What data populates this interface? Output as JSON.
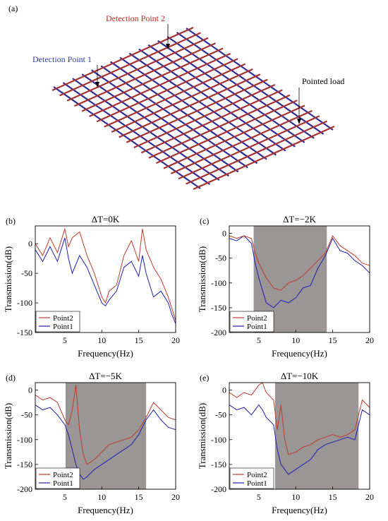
{
  "figure": {
    "top_label": "(a)",
    "annotations": {
      "detection_point_2": "Detection Point 2",
      "detection_point_1": "Detection Point 1",
      "pointed_load": "Pointed load"
    },
    "colors": {
      "point2": "#c0392b",
      "point1": "#1f1fb4",
      "band": "#9a9696",
      "grid_red": "#a83232",
      "grid_blue": "#2c2c9a",
      "annot_red": "#cc2222",
      "annot_blue": "#2e3ea8"
    }
  },
  "chart_data": [
    {
      "type": "line",
      "panel_label": "(b)",
      "title": "ΔT=0K",
      "xlabel": "Frequency(Hz)",
      "ylabel": "Transmission(dB)",
      "xlim": [
        1,
        20
      ],
      "ylim": [
        -150,
        30
      ],
      "xticks": [
        5,
        10,
        15,
        20
      ],
      "yticks": [
        -150,
        -100,
        -50,
        0
      ],
      "band": null,
      "legend": "bottom-left",
      "series": [
        {
          "name": "Point2",
          "x": [
            1,
            2,
            3,
            4,
            5,
            5.5,
            6,
            7,
            8,
            9,
            10,
            10.5,
            11,
            12,
            13,
            14,
            15,
            15.5,
            16,
            17,
            18,
            19,
            19.5,
            20
          ],
          "y": [
            0,
            -20,
            10,
            -15,
            25,
            -5,
            10,
            20,
            -20,
            -50,
            -90,
            -100,
            -80,
            -70,
            -20,
            5,
            -30,
            25,
            -10,
            -40,
            -60,
            -90,
            -110,
            -130
          ]
        },
        {
          "name": "Point1",
          "x": [
            1,
            2,
            3,
            4,
            5,
            5.5,
            6,
            7,
            8,
            9,
            10,
            10.5,
            11,
            12,
            13,
            14,
            15,
            15.5,
            16,
            17,
            18,
            19,
            19.5,
            20
          ],
          "y": [
            -10,
            -30,
            -5,
            -30,
            10,
            -25,
            -50,
            -20,
            -40,
            -70,
            -100,
            -105,
            -95,
            -80,
            -40,
            -30,
            -55,
            -20,
            -50,
            -90,
            -80,
            -100,
            -120,
            -135
          ]
        }
      ]
    },
    {
      "type": "line",
      "panel_label": "(c)",
      "title": "ΔT=−2K",
      "xlabel": "Frequency(Hz)",
      "ylabel": "Transmission(dB)",
      "xlim": [
        1,
        20
      ],
      "ylim": [
        -200,
        15
      ],
      "xticks": [
        5,
        10,
        15,
        20
      ],
      "yticks": [
        -200,
        -150,
        -100,
        -50,
        0
      ],
      "band": [
        4.3,
        14.2
      ],
      "legend": "bottom-left",
      "series": [
        {
          "name": "Point2",
          "x": [
            1,
            2,
            3,
            4,
            4.5,
            5,
            6,
            7,
            8,
            9,
            10,
            11,
            12,
            13,
            14,
            15,
            16,
            17,
            18,
            19,
            20
          ],
          "y": [
            -5,
            -10,
            -5,
            -10,
            -40,
            -60,
            -90,
            -110,
            -115,
            -100,
            -95,
            -85,
            -70,
            -55,
            -40,
            -5,
            -25,
            -35,
            -45,
            -60,
            -65
          ]
        },
        {
          "name": "Point1",
          "x": [
            1,
            2,
            3,
            4,
            4.5,
            5,
            6,
            7,
            8,
            9,
            10,
            11,
            12,
            13,
            14,
            15,
            16,
            17,
            18,
            19,
            20
          ],
          "y": [
            -10,
            -15,
            -5,
            -20,
            -60,
            -90,
            -140,
            -150,
            -135,
            -140,
            -130,
            -110,
            -105,
            -70,
            -45,
            -10,
            -35,
            -40,
            -55,
            -65,
            -80
          ]
        }
      ]
    },
    {
      "type": "line",
      "panel_label": "(d)",
      "title": "ΔT=−5K",
      "xlabel": "Frequency(Hz)",
      "ylabel": "Transmission(dB)",
      "xlim": [
        1,
        20
      ],
      "ylim": [
        -200,
        15
      ],
      "xticks": [
        5,
        10,
        15,
        20
      ],
      "yticks": [
        -200,
        -150,
        -100,
        -50,
        0
      ],
      "band": [
        5.1,
        16
      ],
      "legend": "bottom-left",
      "series": [
        {
          "name": "Point2",
          "x": [
            1,
            2,
            3,
            4,
            5,
            5.5,
            6,
            6.5,
            7,
            7.5,
            8,
            9,
            10,
            11,
            12,
            13,
            14,
            15,
            16,
            17,
            18,
            19,
            20
          ],
          "y": [
            -10,
            -20,
            -15,
            -25,
            -60,
            -70,
            -40,
            10,
            -80,
            -130,
            -150,
            -140,
            -125,
            -110,
            -105,
            -100,
            -95,
            -80,
            -55,
            -25,
            -40,
            -55,
            -60
          ]
        },
        {
          "name": "Point1",
          "x": [
            1,
            2,
            3,
            4,
            5,
            5.5,
            6,
            6.5,
            7,
            7.5,
            8,
            9,
            10,
            11,
            12,
            13,
            14,
            15,
            16,
            17,
            18,
            19,
            20
          ],
          "y": [
            -30,
            -40,
            -35,
            -50,
            -70,
            -90,
            -120,
            -150,
            -170,
            -180,
            -175,
            -160,
            -150,
            -140,
            -130,
            -120,
            -110,
            -90,
            -60,
            -40,
            -60,
            -75,
            -80
          ]
        }
      ]
    },
    {
      "type": "line",
      "panel_label": "(e)",
      "title": "ΔT=−10K",
      "xlabel": "Frequency(Hz)",
      "ylabel": "Transmission(dB)",
      "xlim": [
        1,
        20
      ],
      "ylim": [
        -200,
        15
      ],
      "xticks": [
        5,
        10,
        15,
        20
      ],
      "yticks": [
        -200,
        -150,
        -100,
        -50,
        0
      ],
      "band": [
        7.2,
        18.5
      ],
      "legend": "bottom-left",
      "series": [
        {
          "name": "Point2",
          "x": [
            1,
            2,
            3,
            4,
            5,
            5.5,
            6,
            7,
            7.5,
            8,
            8.5,
            9,
            10,
            11,
            12,
            13,
            14,
            15,
            16,
            17,
            18,
            19,
            20
          ],
          "y": [
            -5,
            -15,
            -5,
            -10,
            10,
            25,
            -5,
            -20,
            -80,
            -30,
            -100,
            -130,
            -125,
            -115,
            -110,
            -100,
            -95,
            -90,
            -95,
            -90,
            -80,
            -20,
            -35
          ]
        },
        {
          "name": "Point1",
          "x": [
            1,
            2,
            3,
            4,
            5,
            5.5,
            6,
            7,
            7.5,
            8,
            8.5,
            9,
            10,
            11,
            12,
            13,
            14,
            15,
            16,
            17,
            18,
            19,
            20
          ],
          "y": [
            -30,
            -40,
            -35,
            -50,
            -30,
            -40,
            -55,
            -70,
            -120,
            -150,
            -160,
            -170,
            -160,
            -150,
            -140,
            -120,
            -110,
            -105,
            -100,
            -95,
            -100,
            -40,
            -50
          ]
        }
      ]
    }
  ]
}
